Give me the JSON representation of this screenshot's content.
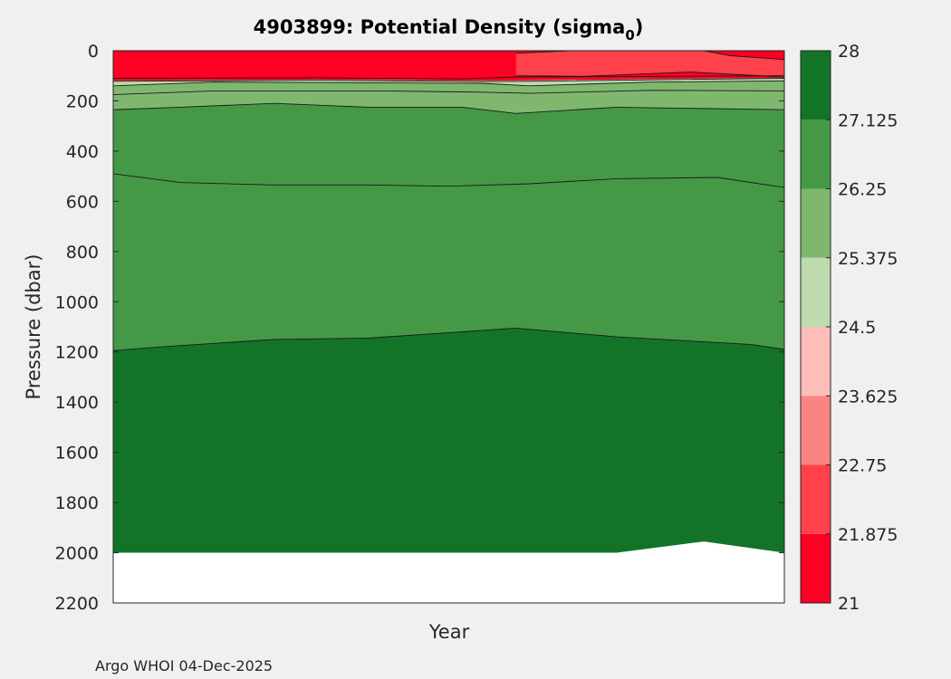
{
  "chart_data": {
    "type": "heatmap",
    "subtype": "filled-contour",
    "title": "4903899: Potential Density (sigma",
    "title_subscript": "0",
    "title_close": ")",
    "xlabel": "Year",
    "ylabel": "Pressure (dbar)",
    "footer": "Argo WHOI 04-Dec-2025",
    "x_domain": [
      0,
      1
    ],
    "y_axis": {
      "ylim": [
        0,
        2200
      ],
      "reversed": true,
      "ticks": [
        0,
        200,
        400,
        600,
        800,
        1000,
        1200,
        1400,
        1600,
        1800,
        2000,
        2200
      ]
    },
    "colorbar": {
      "ticks": [
        28,
        27.125,
        26.25,
        25.375,
        24.5,
        23.625,
        22.75,
        21.875,
        21
      ],
      "levels": [
        21,
        21.875,
        22.75,
        23.625,
        24.5,
        25.375,
        26.25,
        27.125,
        28
      ],
      "colors": [
        "#fd0023",
        "#fe414a",
        "#f98482",
        "#fdbdb9",
        "#bedbb0",
        "#7fb76f",
        "#459946",
        "#137428"
      ]
    },
    "regions": [
      {
        "name": "deep-water",
        "color": "#137428",
        "top": [
          [
            0,
            1195
          ],
          [
            0.07,
            1180
          ],
          [
            0.24,
            1150
          ],
          [
            0.38,
            1145
          ],
          [
            0.52,
            1120
          ],
          [
            0.6,
            1105
          ],
          [
            0.75,
            1140
          ],
          [
            0.95,
            1170
          ],
          [
            1,
            1190
          ]
        ],
        "bottom": [
          [
            0,
            2000
          ],
          [
            0.75,
            2000
          ],
          [
            0.88,
            1955
          ],
          [
            1,
            2000
          ]
        ]
      },
      {
        "name": "intermediate-water",
        "color": "#459946",
        "top": [
          [
            0,
            235
          ],
          [
            0.1,
            225
          ],
          [
            0.24,
            210
          ],
          [
            0.38,
            225
          ],
          [
            0.52,
            225
          ],
          [
            0.6,
            250
          ],
          [
            0.75,
            225
          ],
          [
            1,
            235
          ]
        ],
        "bottom": [
          [
            0,
            1195
          ],
          [
            0.07,
            1180
          ],
          [
            0.24,
            1150
          ],
          [
            0.38,
            1145
          ],
          [
            0.52,
            1120
          ],
          [
            0.6,
            1105
          ],
          [
            0.75,
            1140
          ],
          [
            0.95,
            1170
          ],
          [
            1,
            1190
          ]
        ]
      },
      {
        "name": "upper-thermocline",
        "color": "#7fb76f",
        "top": [
          [
            0,
            140
          ],
          [
            0.15,
            125
          ],
          [
            0.55,
            130
          ],
          [
            0.62,
            140
          ],
          [
            0.8,
            125
          ],
          [
            1,
            120
          ]
        ],
        "bottom": [
          [
            0,
            235
          ],
          [
            0.1,
            225
          ],
          [
            0.24,
            210
          ],
          [
            0.38,
            225
          ],
          [
            0.52,
            225
          ],
          [
            0.6,
            250
          ],
          [
            0.75,
            225
          ],
          [
            1,
            235
          ]
        ]
      },
      {
        "name": "mixed-layer-transition",
        "color": "#bedbb0",
        "top": [
          [
            0,
            120
          ],
          [
            0.3,
            115
          ],
          [
            0.55,
            120
          ],
          [
            0.62,
            118
          ],
          [
            1,
            108
          ]
        ],
        "bottom": [
          [
            0,
            140
          ],
          [
            0.15,
            125
          ],
          [
            0.55,
            130
          ],
          [
            0.62,
            140
          ],
          [
            0.8,
            125
          ],
          [
            1,
            120
          ]
        ]
      },
      {
        "name": "surface-light",
        "color": "#fe414a",
        "top": [
          [
            0.6,
            10
          ],
          [
            0.68,
            0
          ],
          [
            0.88,
            0
          ],
          [
            0.92,
            20
          ],
          [
            1,
            35
          ]
        ],
        "bottom": [
          [
            0.6,
            100
          ],
          [
            0.7,
            102
          ],
          [
            0.86,
            85
          ],
          [
            1,
            105
          ]
        ]
      }
    ],
    "contours": [
      [
        [
          0,
          1195
        ],
        [
          0.07,
          1180
        ],
        [
          0.24,
          1150
        ],
        [
          0.38,
          1145
        ],
        [
          0.52,
          1120
        ],
        [
          0.6,
          1105
        ],
        [
          0.75,
          1140
        ],
        [
          0.95,
          1170
        ],
        [
          1,
          1190
        ]
      ],
      [
        [
          0,
          490
        ],
        [
          0.1,
          525
        ],
        [
          0.24,
          535
        ],
        [
          0.38,
          535
        ],
        [
          0.5,
          540
        ],
        [
          0.62,
          530
        ],
        [
          0.75,
          510
        ],
        [
          0.9,
          505
        ],
        [
          1,
          545
        ]
      ],
      [
        [
          0,
          235
        ],
        [
          0.1,
          225
        ],
        [
          0.24,
          210
        ],
        [
          0.38,
          225
        ],
        [
          0.52,
          225
        ],
        [
          0.6,
          250
        ],
        [
          0.75,
          225
        ],
        [
          1,
          235
        ]
      ],
      [
        [
          0,
          175
        ],
        [
          0.15,
          160
        ],
        [
          0.4,
          160
        ],
        [
          0.55,
          165
        ],
        [
          0.62,
          170
        ],
        [
          0.8,
          158
        ],
        [
          1,
          160
        ]
      ],
      [
        [
          0,
          140
        ],
        [
          0.15,
          125
        ],
        [
          0.55,
          130
        ],
        [
          0.62,
          140
        ],
        [
          0.8,
          125
        ],
        [
          1,
          120
        ]
      ],
      [
        [
          0,
          122
        ],
        [
          0.3,
          118
        ],
        [
          0.55,
          123
        ],
        [
          0.62,
          122
        ],
        [
          1,
          110
        ]
      ],
      [
        [
          0,
          110
        ],
        [
          0.3,
          108
        ],
        [
          0.52,
          112
        ],
        [
          0.6,
          105
        ],
        [
          1,
          100
        ]
      ],
      [
        [
          0.6,
          10
        ],
        [
          0.68,
          0
        ]
      ],
      [
        [
          0.88,
          0
        ],
        [
          0.92,
          20
        ],
        [
          1,
          35
        ]
      ],
      [
        [
          0.6,
          100
        ],
        [
          0.7,
          102
        ],
        [
          0.86,
          85
        ],
        [
          1,
          105
        ]
      ]
    ]
  }
}
